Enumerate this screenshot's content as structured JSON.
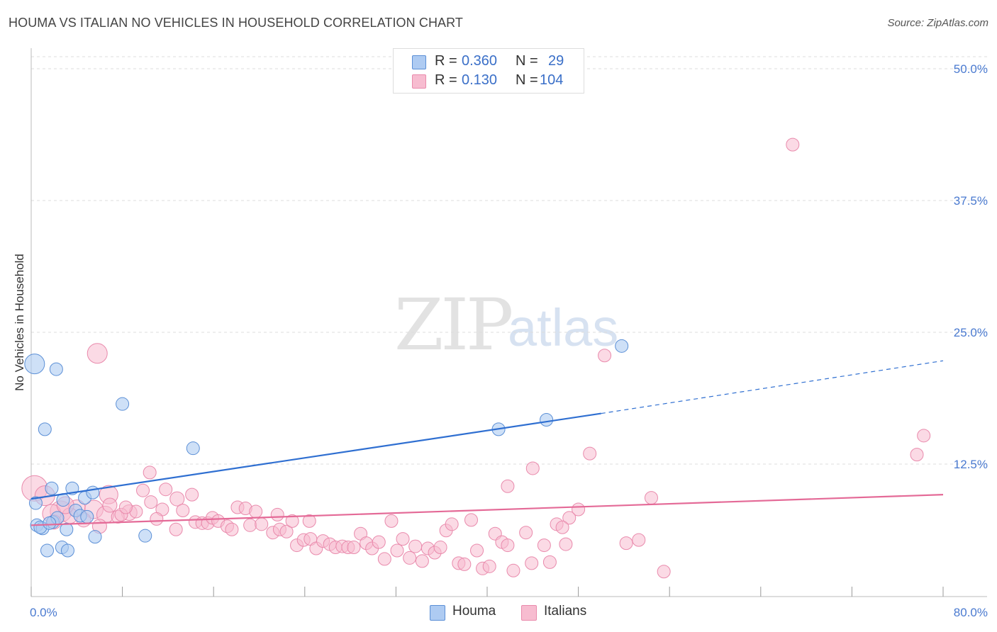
{
  "title": "HOUMA VS ITALIAN NO VEHICLES IN HOUSEHOLD CORRELATION CHART",
  "source": "Source: ZipAtlas.com",
  "watermark": {
    "zip": "ZIP",
    "atlas": "atlas"
  },
  "legend": {
    "rows": [
      {
        "r_label": "R =",
        "r_value": "0.360",
        "n_label": "N =",
        "n_value": "29"
      },
      {
        "r_label": "R =",
        "r_value": "0.130",
        "n_label": "N =",
        "n_value": "104"
      }
    ]
  },
  "bottom_legend": {
    "houma": "Houma",
    "italians": "Italians"
  },
  "colors": {
    "houma_fill": "#aecbf2",
    "houma_stroke": "#5b8fd6",
    "houma_line": "#2f6fd1",
    "italians_fill": "#f7bcd0",
    "italians_stroke": "#e98aac",
    "italians_line": "#e46a97",
    "tick_label": "#4a7ad0",
    "grid": "#dcdcdc"
  },
  "chart_data": {
    "type": "scatter",
    "title": "HOUMA VS ITALIAN NO VEHICLES IN HOUSEHOLD CORRELATION CHART",
    "xlabel": "",
    "ylabel": "No Vehicles in Household",
    "xlim": [
      0,
      80
    ],
    "ylim": [
      0,
      51
    ],
    "x_tick_labels": [
      "0.0%",
      "80.0%"
    ],
    "y_ticks": [
      12.5,
      25.0,
      37.5,
      50.0
    ],
    "y_tick_labels": [
      "12.5%",
      "25.0%",
      "37.5%",
      "50.0%"
    ],
    "series": [
      {
        "name": "Houma",
        "r": 0.36,
        "n": 29,
        "trend": {
          "x0": 0,
          "y0": 9.2,
          "x1": 50,
          "y1": 17.3,
          "dash_x1": 80,
          "dash_y1": 22.3
        },
        "points": [
          {
            "x": 0.3,
            "y": 22.0,
            "s": 14
          },
          {
            "x": 2.2,
            "y": 21.5,
            "s": 9
          },
          {
            "x": 1.2,
            "y": 15.8,
            "s": 9
          },
          {
            "x": 8.0,
            "y": 18.2,
            "s": 9
          },
          {
            "x": 14.2,
            "y": 14.0,
            "s": 9
          },
          {
            "x": 41.0,
            "y": 15.8,
            "s": 9
          },
          {
            "x": 45.2,
            "y": 16.7,
            "s": 9
          },
          {
            "x": 51.8,
            "y": 23.7,
            "s": 9
          },
          {
            "x": 1.8,
            "y": 10.2,
            "s": 9
          },
          {
            "x": 3.6,
            "y": 10.2,
            "s": 9
          },
          {
            "x": 2.8,
            "y": 9.1,
            "s": 9
          },
          {
            "x": 4.7,
            "y": 9.3,
            "s": 9
          },
          {
            "x": 0.4,
            "y": 8.8,
            "s": 9
          },
          {
            "x": 5.4,
            "y": 9.8,
            "s": 9
          },
          {
            "x": 3.9,
            "y": 8.1,
            "s": 9
          },
          {
            "x": 4.3,
            "y": 7.6,
            "s": 9
          },
          {
            "x": 1.9,
            "y": 7.0,
            "s": 9
          },
          {
            "x": 0.5,
            "y": 6.7,
            "s": 9
          },
          {
            "x": 1.0,
            "y": 6.4,
            "s": 9
          },
          {
            "x": 3.1,
            "y": 6.3,
            "s": 9
          },
          {
            "x": 5.6,
            "y": 5.6,
            "s": 9
          },
          {
            "x": 10.0,
            "y": 5.7,
            "s": 9
          },
          {
            "x": 1.4,
            "y": 4.3,
            "s": 9
          },
          {
            "x": 2.7,
            "y": 4.6,
            "s": 9
          },
          {
            "x": 3.2,
            "y": 4.3,
            "s": 9
          },
          {
            "x": 2.3,
            "y": 7.4,
            "s": 9
          },
          {
            "x": 4.9,
            "y": 7.5,
            "s": 9
          },
          {
            "x": 0.8,
            "y": 6.5,
            "s": 9
          },
          {
            "x": 1.6,
            "y": 6.9,
            "s": 9
          }
        ]
      },
      {
        "name": "Italians",
        "r": 0.13,
        "n": 104,
        "trend": {
          "x0": 0,
          "y0": 6.7,
          "x1": 80,
          "y1": 9.6
        },
        "points": [
          {
            "x": 66.8,
            "y": 42.8,
            "s": 9
          },
          {
            "x": 5.8,
            "y": 23.0,
            "s": 14
          },
          {
            "x": 50.3,
            "y": 22.8,
            "s": 9
          },
          {
            "x": 78.3,
            "y": 15.2,
            "s": 9
          },
          {
            "x": 49.0,
            "y": 13.5,
            "s": 9
          },
          {
            "x": 77.7,
            "y": 13.4,
            "s": 9
          },
          {
            "x": 44.0,
            "y": 12.1,
            "s": 9
          },
          {
            "x": 10.4,
            "y": 11.7,
            "s": 9
          },
          {
            "x": 41.8,
            "y": 10.4,
            "s": 9
          },
          {
            "x": 0.3,
            "y": 10.2,
            "s": 18
          },
          {
            "x": 1.2,
            "y": 9.5,
            "s": 14
          },
          {
            "x": 6.8,
            "y": 9.6,
            "s": 13
          },
          {
            "x": 9.8,
            "y": 10.0,
            "s": 9
          },
          {
            "x": 11.8,
            "y": 10.1,
            "s": 9
          },
          {
            "x": 12.8,
            "y": 9.2,
            "s": 10
          },
          {
            "x": 54.4,
            "y": 9.3,
            "s": 9
          },
          {
            "x": 2.6,
            "y": 8.0,
            "s": 15
          },
          {
            "x": 4.0,
            "y": 8.3,
            "s": 12
          },
          {
            "x": 5.5,
            "y": 8.2,
            "s": 13
          },
          {
            "x": 6.5,
            "y": 7.7,
            "s": 12
          },
          {
            "x": 8.6,
            "y": 7.9,
            "s": 11
          },
          {
            "x": 1.8,
            "y": 7.8,
            "s": 13
          },
          {
            "x": 3.4,
            "y": 7.6,
            "s": 11
          },
          {
            "x": 4.6,
            "y": 7.2,
            "s": 10
          },
          {
            "x": 7.6,
            "y": 7.5,
            "s": 9
          },
          {
            "x": 10.5,
            "y": 8.9,
            "s": 9
          },
          {
            "x": 11.5,
            "y": 8.2,
            "s": 9
          },
          {
            "x": 13.3,
            "y": 8.1,
            "s": 9
          },
          {
            "x": 14.1,
            "y": 9.6,
            "s": 9
          },
          {
            "x": 18.1,
            "y": 8.4,
            "s": 9
          },
          {
            "x": 18.8,
            "y": 8.3,
            "s": 9
          },
          {
            "x": 19.7,
            "y": 8.0,
            "s": 9
          },
          {
            "x": 21.6,
            "y": 7.7,
            "s": 9
          },
          {
            "x": 48.0,
            "y": 8.2,
            "s": 9
          },
          {
            "x": 47.2,
            "y": 7.4,
            "s": 9
          },
          {
            "x": 14.4,
            "y": 7.0,
            "s": 9
          },
          {
            "x": 15.0,
            "y": 6.9,
            "s": 9
          },
          {
            "x": 15.5,
            "y": 6.9,
            "s": 9
          },
          {
            "x": 15.9,
            "y": 7.4,
            "s": 9
          },
          {
            "x": 16.4,
            "y": 7.1,
            "s": 9
          },
          {
            "x": 17.2,
            "y": 6.6,
            "s": 9
          },
          {
            "x": 17.6,
            "y": 6.3,
            "s": 9
          },
          {
            "x": 19.2,
            "y": 6.7,
            "s": 9
          },
          {
            "x": 20.2,
            "y": 6.8,
            "s": 9
          },
          {
            "x": 21.2,
            "y": 6.0,
            "s": 9
          },
          {
            "x": 21.8,
            "y": 6.3,
            "s": 9
          },
          {
            "x": 22.4,
            "y": 6.1,
            "s": 9
          },
          {
            "x": 22.9,
            "y": 7.1,
            "s": 9
          },
          {
            "x": 24.4,
            "y": 7.1,
            "s": 9
          },
          {
            "x": 12.7,
            "y": 6.3,
            "s": 9
          },
          {
            "x": 6.0,
            "y": 6.6,
            "s": 10
          },
          {
            "x": 23.3,
            "y": 4.8,
            "s": 9
          },
          {
            "x": 23.9,
            "y": 5.3,
            "s": 9
          },
          {
            "x": 24.5,
            "y": 5.4,
            "s": 9
          },
          {
            "x": 25.0,
            "y": 4.5,
            "s": 9
          },
          {
            "x": 25.6,
            "y": 5.2,
            "s": 9
          },
          {
            "x": 26.2,
            "y": 4.9,
            "s": 9
          },
          {
            "x": 26.7,
            "y": 4.6,
            "s": 9
          },
          {
            "x": 27.3,
            "y": 4.7,
            "s": 9
          },
          {
            "x": 27.8,
            "y": 4.6,
            "s": 9
          },
          {
            "x": 28.3,
            "y": 4.6,
            "s": 9
          },
          {
            "x": 28.9,
            "y": 5.9,
            "s": 9
          },
          {
            "x": 29.4,
            "y": 5.0,
            "s": 9
          },
          {
            "x": 29.9,
            "y": 4.5,
            "s": 9
          },
          {
            "x": 30.5,
            "y": 5.1,
            "s": 9
          },
          {
            "x": 31.0,
            "y": 3.5,
            "s": 9
          },
          {
            "x": 31.6,
            "y": 7.1,
            "s": 9
          },
          {
            "x": 32.1,
            "y": 4.3,
            "s": 9
          },
          {
            "x": 32.6,
            "y": 5.4,
            "s": 9
          },
          {
            "x": 33.2,
            "y": 3.6,
            "s": 9
          },
          {
            "x": 33.7,
            "y": 4.7,
            "s": 9
          },
          {
            "x": 34.3,
            "y": 3.3,
            "s": 9
          },
          {
            "x": 34.8,
            "y": 4.5,
            "s": 9
          },
          {
            "x": 35.4,
            "y": 4.1,
            "s": 9
          },
          {
            "x": 35.9,
            "y": 4.6,
            "s": 9
          },
          {
            "x": 36.4,
            "y": 6.2,
            "s": 9
          },
          {
            "x": 36.9,
            "y": 6.8,
            "s": 9
          },
          {
            "x": 37.5,
            "y": 3.1,
            "s": 9
          },
          {
            "x": 38.0,
            "y": 3.0,
            "s": 9
          },
          {
            "x": 38.6,
            "y": 7.2,
            "s": 9
          },
          {
            "x": 39.1,
            "y": 4.3,
            "s": 9
          },
          {
            "x": 39.6,
            "y": 2.6,
            "s": 9
          },
          {
            "x": 40.2,
            "y": 2.8,
            "s": 9
          },
          {
            "x": 40.7,
            "y": 5.9,
            "s": 9
          },
          {
            "x": 41.3,
            "y": 5.1,
            "s": 9
          },
          {
            "x": 41.8,
            "y": 4.8,
            "s": 9
          },
          {
            "x": 42.3,
            "y": 2.4,
            "s": 9
          },
          {
            "x": 43.4,
            "y": 6.0,
            "s": 9
          },
          {
            "x": 43.9,
            "y": 3.1,
            "s": 9
          },
          {
            "x": 45.0,
            "y": 4.8,
            "s": 9
          },
          {
            "x": 45.5,
            "y": 3.2,
            "s": 9
          },
          {
            "x": 46.1,
            "y": 6.8,
            "s": 9
          },
          {
            "x": 46.6,
            "y": 6.5,
            "s": 9
          },
          {
            "x": 46.9,
            "y": 4.9,
            "s": 9
          },
          {
            "x": 52.2,
            "y": 5.0,
            "s": 9
          },
          {
            "x": 53.3,
            "y": 5.3,
            "s": 9
          },
          {
            "x": 55.5,
            "y": 2.3,
            "s": 9
          },
          {
            "x": 6.9,
            "y": 8.6,
            "s": 10
          },
          {
            "x": 7.9,
            "y": 7.7,
            "s": 9
          },
          {
            "x": 9.2,
            "y": 8.0,
            "s": 9
          },
          {
            "x": 8.3,
            "y": 8.4,
            "s": 9
          },
          {
            "x": 11.0,
            "y": 7.3,
            "s": 9
          },
          {
            "x": 3.0,
            "y": 8.6,
            "s": 12
          },
          {
            "x": 2.0,
            "y": 7.0,
            "s": 10
          }
        ]
      }
    ]
  }
}
